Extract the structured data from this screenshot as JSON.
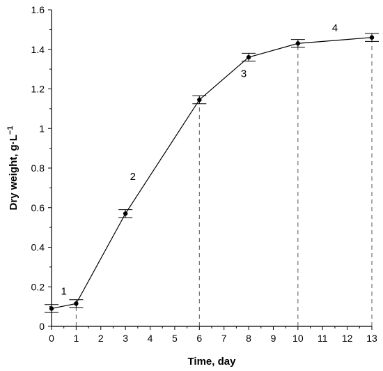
{
  "chart_data": {
    "type": "line",
    "xlabel": "Time, day",
    "ylabel_main": "Dry weight, g",
    "ylabel_unit_base": "·L",
    "ylabel_unit_exp": "−1",
    "xlim": [
      0,
      13
    ],
    "ylim": [
      0,
      1.6
    ],
    "x_ticks": [
      0,
      1,
      2,
      3,
      4,
      5,
      6,
      7,
      8,
      9,
      10,
      11,
      12,
      13
    ],
    "y_ticks": [
      0,
      0.2,
      0.4,
      0.6,
      0.8,
      1,
      1.2,
      1.4,
      1.6
    ],
    "y_tick_labels": [
      "0",
      "0.2",
      "0.4",
      "0.6",
      "0.8",
      "1",
      "1.2",
      "1.4",
      "1.6"
    ],
    "grid": false,
    "series": [
      {
        "x": [
          0,
          1,
          3,
          6,
          8,
          10,
          13
        ],
        "y": [
          0.09,
          0.115,
          0.57,
          1.145,
          1.36,
          1.43,
          1.46
        ],
        "error": [
          0.02,
          0.02,
          0.02,
          0.02,
          0.02,
          0.02,
          0.02
        ]
      }
    ],
    "dashed_verticals_x": [
      1,
      6,
      10,
      13
    ],
    "annotations": [
      {
        "text": "1",
        "x": 0.5,
        "y": 0.16
      },
      {
        "text": "2",
        "x": 3.3,
        "y": 0.74
      },
      {
        "text": "3",
        "x": 7.8,
        "y": 1.26
      },
      {
        "text": "4",
        "x": 11.5,
        "y": 1.49
      }
    ]
  }
}
